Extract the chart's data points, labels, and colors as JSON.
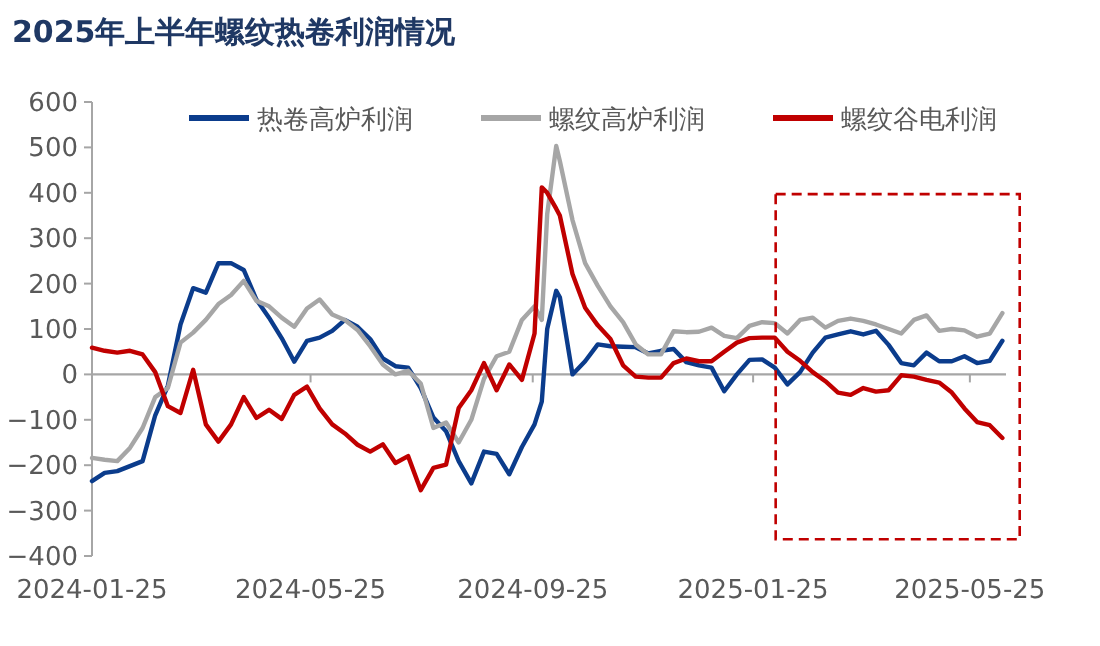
{
  "chart_data": {
    "type": "line",
    "title": "2025年上半年螺纹热卷利润情况",
    "x": [
      "2024-01-25",
      "2024-02-01",
      "2024-02-08",
      "2024-02-15",
      "2024-02-22",
      "2024-02-29",
      "2024-03-07",
      "2024-03-14",
      "2024-03-21",
      "2024-03-28",
      "2024-04-04",
      "2024-04-11",
      "2024-04-18",
      "2024-04-25",
      "2024-05-02",
      "2024-05-09",
      "2024-05-16",
      "2024-05-23",
      "2024-05-30",
      "2024-06-06",
      "2024-06-13",
      "2024-06-20",
      "2024-06-27",
      "2024-07-04",
      "2024-07-11",
      "2024-07-18",
      "2024-07-25",
      "2024-08-01",
      "2024-08-08",
      "2024-08-15",
      "2024-08-22",
      "2024-08-29",
      "2024-09-05",
      "2024-09-12",
      "2024-09-19",
      "2024-09-26",
      "2024-09-30",
      "2024-10-03",
      "2024-10-08",
      "2024-10-10",
      "2024-10-17",
      "2024-10-24",
      "2024-10-31",
      "2024-11-07",
      "2024-11-14",
      "2024-11-21",
      "2024-11-28",
      "2024-12-05",
      "2024-12-12",
      "2024-12-19",
      "2024-12-26",
      "2025-01-02",
      "2025-01-09",
      "2025-01-16",
      "2025-01-23",
      "2025-01-30",
      "2025-02-06",
      "2025-02-13",
      "2025-02-20",
      "2025-02-27",
      "2025-03-06",
      "2025-03-13",
      "2025-03-20",
      "2025-03-27",
      "2025-04-03",
      "2025-04-10",
      "2025-04-17",
      "2025-04-24",
      "2025-05-01",
      "2025-05-08",
      "2025-05-15",
      "2025-05-22",
      "2025-05-29",
      "2025-06-05",
      "2025-06-12"
    ],
    "series": [
      {
        "name": "热卷高炉利润",
        "color": "#0b3c8c",
        "values": [
          -235,
          -217,
          -213,
          -202,
          -191,
          -90,
          -25,
          110,
          190,
          180,
          245,
          245,
          230,
          165,
          125,
          80,
          28,
          74,
          81,
          96,
          120,
          105,
          78,
          35,
          18,
          15,
          -30,
          -95,
          -125,
          -191,
          -240,
          -170,
          -175,
          -220,
          -160,
          -110,
          -60,
          100,
          184,
          170,
          0,
          29,
          66,
          62,
          61,
          60,
          46,
          52,
          56,
          27,
          20,
          15,
          -37,
          0,
          32,
          33,
          15,
          -22,
          5,
          48,
          81,
          88,
          95,
          88,
          96,
          65,
          25,
          20,
          48,
          29,
          29,
          40,
          25,
          30,
          74
        ]
      },
      {
        "name": "螺纹高炉利润",
        "color": "#a6a6a6",
        "values": [
          -184,
          -188,
          -191,
          -162,
          -118,
          -50,
          -30,
          70,
          92,
          120,
          155,
          175,
          206,
          162,
          150,
          125,
          105,
          145,
          165,
          132,
          120,
          98,
          62,
          22,
          0,
          8,
          -20,
          -118,
          -106,
          -150,
          -100,
          -10,
          40,
          50,
          120,
          150,
          120,
          353,
          503,
          470,
          340,
          245,
          195,
          150,
          115,
          66,
          44,
          44,
          95,
          93,
          94,
          103,
          85,
          80,
          107,
          115,
          113,
          90,
          120,
          125,
          103,
          118,
          123,
          118,
          110,
          100,
          90,
          120,
          130,
          96,
          100,
          97,
          83,
          90,
          135
        ]
      },
      {
        "name": "螺纹谷电利润",
        "color": "#c00000",
        "values": [
          59,
          52,
          48,
          52,
          44,
          5,
          -70,
          -85,
          10,
          -110,
          -148,
          -110,
          -50,
          -96,
          -78,
          -98,
          -45,
          -27,
          -75,
          -110,
          -130,
          -155,
          -170,
          -154,
          -195,
          -180,
          -255,
          -206,
          -199,
          -74,
          -35,
          25,
          -35,
          22,
          -12,
          90,
          412,
          400,
          365,
          350,
          221,
          147,
          108,
          78,
          20,
          -5,
          -7,
          -7,
          25,
          35,
          29,
          29,
          50,
          70,
          80,
          81,
          81,
          50,
          30,
          5,
          -15,
          -40,
          -45,
          -30,
          -38,
          -35,
          -2,
          -5,
          -12,
          -18,
          -40,
          -75,
          -105,
          -112,
          -140
        ]
      }
    ],
    "xlim": [
      "2024-01-25",
      "2025-06-14"
    ],
    "xticks": [
      "2024-01-25",
      "2024-05-25",
      "2024-09-25",
      "2025-01-25",
      "2025-05-25"
    ],
    "ylim": [
      -400,
      600
    ],
    "yticks": [
      -400,
      -300,
      -200,
      -100,
      0,
      100,
      200,
      300,
      400,
      500,
      600
    ],
    "legend": "top",
    "marker": "none",
    "line_style": "solid"
  }
}
